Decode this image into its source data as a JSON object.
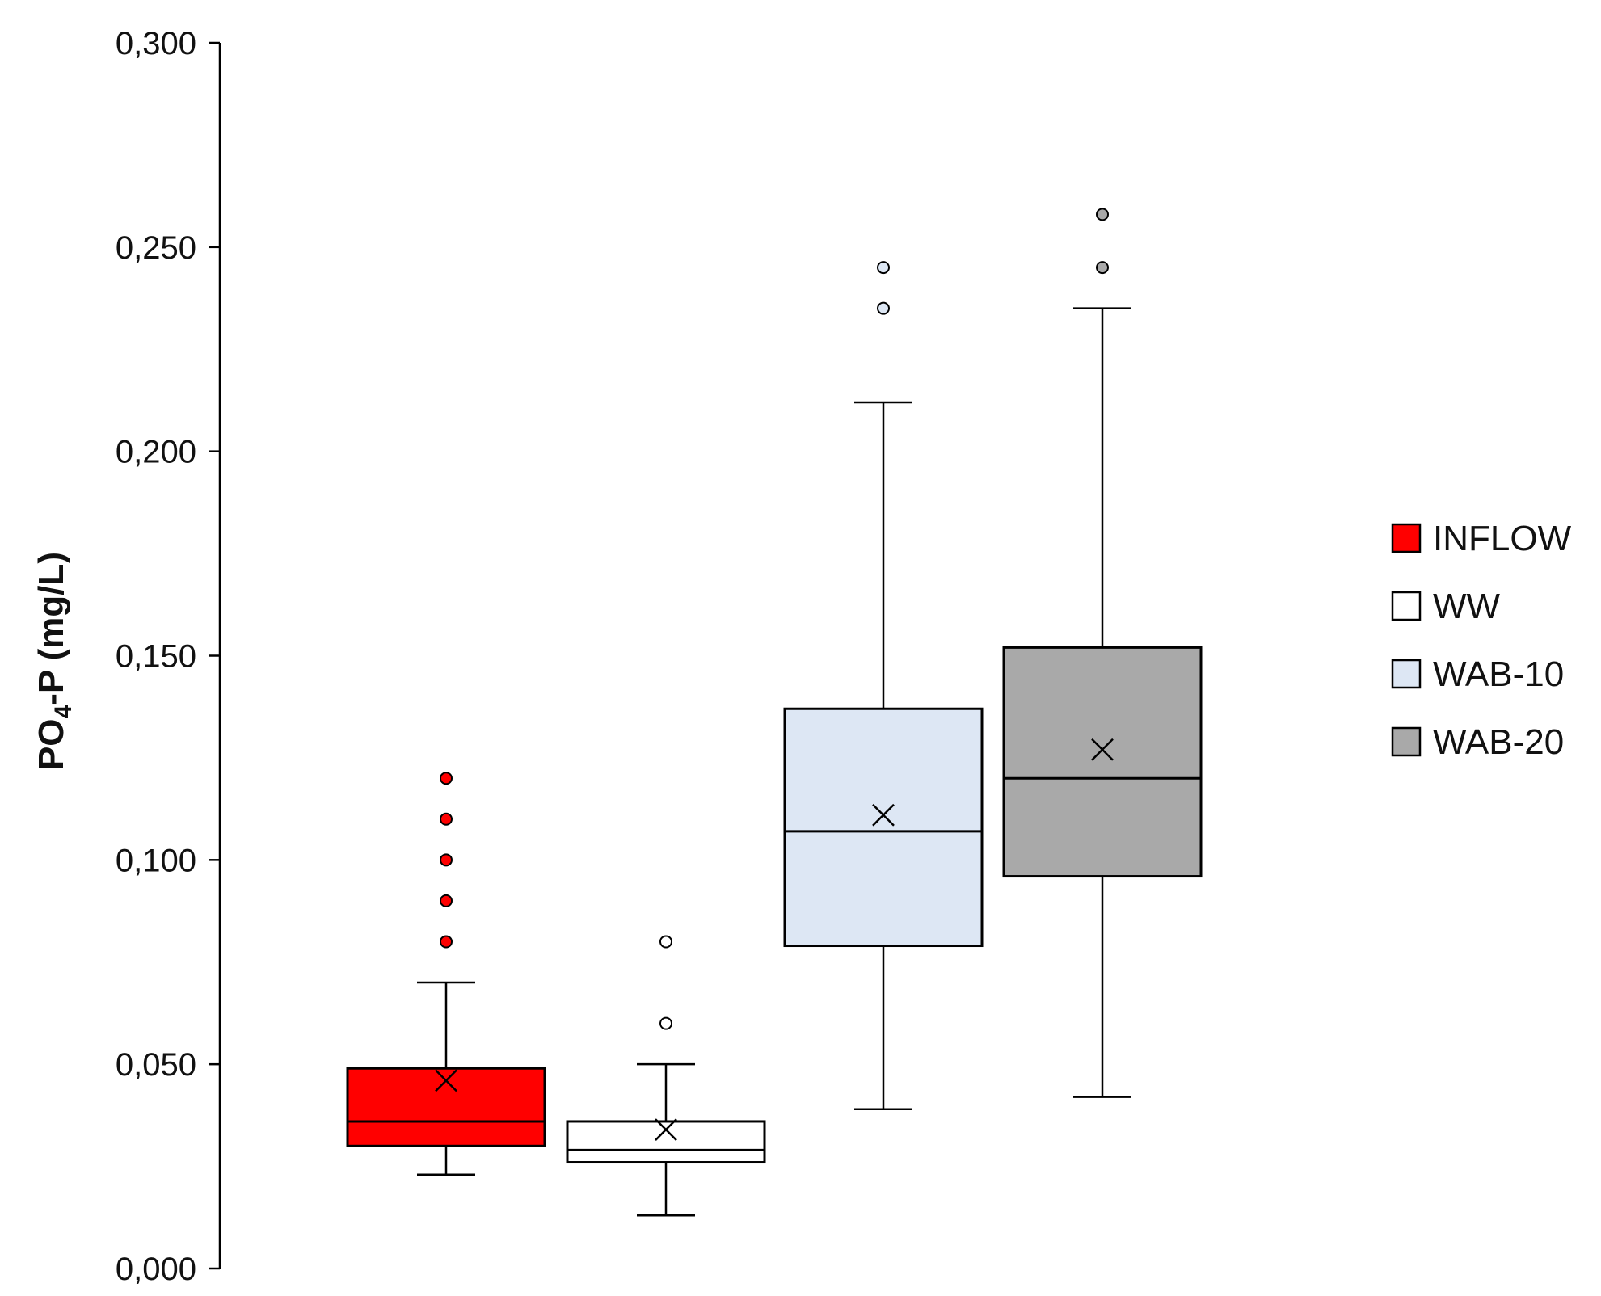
{
  "chart_data": {
    "type": "box",
    "ylabel": {
      "prefix": "PO",
      "subscript": "4",
      "suffix": "-P (mg/L)"
    },
    "ylim": [
      0,
      0.3
    ],
    "yticks": [
      "0,000",
      "0,050",
      "0,100",
      "0,150",
      "0,200",
      "0,250",
      "0,300"
    ],
    "ytick_values": [
      0,
      0.05,
      0.1,
      0.15,
      0.2,
      0.25,
      0.3
    ],
    "grid": false,
    "legend_position": "right",
    "series": [
      {
        "name": "INFLOW",
        "color": "#ff0000",
        "whisker_low": 0.023,
        "q1": 0.03,
        "median": 0.036,
        "q3": 0.049,
        "whisker_high": 0.07,
        "mean": 0.046,
        "outliers": [
          0.08,
          0.09,
          0.1,
          0.11,
          0.12
        ]
      },
      {
        "name": "WW",
        "color": "#ffffff",
        "whisker_low": 0.013,
        "q1": 0.026,
        "median": 0.029,
        "q3": 0.036,
        "whisker_high": 0.05,
        "mean": 0.034,
        "outliers": [
          0.06,
          0.08
        ]
      },
      {
        "name": "WAB-10",
        "color": "#dde7f4",
        "whisker_low": 0.039,
        "q1": 0.079,
        "median": 0.107,
        "q3": 0.137,
        "whisker_high": 0.212,
        "mean": 0.111,
        "outliers": [
          0.235,
          0.245
        ]
      },
      {
        "name": "WAB-20",
        "color": "#a9a9a9",
        "whisker_low": 0.042,
        "q1": 0.096,
        "median": 0.12,
        "q3": 0.152,
        "whisker_high": 0.235,
        "mean": 0.127,
        "outliers": [
          0.245,
          0.258
        ]
      }
    ]
  }
}
